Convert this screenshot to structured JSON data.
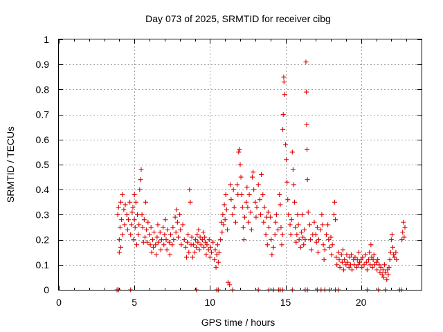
{
  "chart_data": {
    "type": "scatter",
    "title": "Day 073 of 2025, SRMTID for receiver cibg",
    "xlabel": "GPS time / hours",
    "ylabel": "SRMTID / TECUs",
    "xlim": [
      0,
      24
    ],
    "ylim": [
      0,
      1
    ],
    "grid": true,
    "marker": "+",
    "color": "#e00000",
    "x_ticks": [
      0,
      5,
      10,
      15,
      20
    ],
    "x_tick_labels": [
      "0",
      "5",
      "10",
      "15",
      "20"
    ],
    "y_ticks": [
      0,
      0.1,
      0.2,
      0.3,
      0.4,
      0.5,
      0.6,
      0.7,
      0.8,
      0.9,
      1
    ],
    "y_tick_labels": [
      "0",
      "0.1",
      "0.2",
      "0.3",
      "0.4",
      "0.5",
      "0.6",
      "0.7",
      "0.8",
      "0.9",
      "1"
    ],
    "series_description": "SRMTID values (TECU) versus GPS time (hours)",
    "points": [
      [
        3.9,
        0.3
      ],
      [
        3.95,
        0.33
      ],
      [
        4.0,
        0.2
      ],
      [
        4.0,
        0.15
      ],
      [
        4.05,
        0.25
      ],
      [
        4.1,
        0.35
      ],
      [
        4.1,
        0.17
      ],
      [
        4.15,
        0.28
      ],
      [
        4.2,
        0.38
      ],
      [
        4.2,
        0.22
      ],
      [
        4.3,
        0.32
      ],
      [
        4.35,
        0.26
      ],
      [
        4.4,
        0.34
      ],
      [
        4.5,
        0.3
      ],
      [
        4.55,
        0.24
      ],
      [
        4.6,
        0.28
      ],
      [
        4.7,
        0.35
      ],
      [
        4.75,
        0.22
      ],
      [
        4.8,
        0.26
      ],
      [
        4.85,
        0.31
      ],
      [
        4.9,
        0.33
      ],
      [
        4.95,
        0.2
      ],
      [
        5.0,
        0.38
      ],
      [
        5.0,
        0.28
      ],
      [
        5.05,
        0.25
      ],
      [
        5.1,
        0.35
      ],
      [
        5.15,
        0.18
      ],
      [
        5.2,
        0.3
      ],
      [
        5.25,
        0.22
      ],
      [
        5.3,
        0.26
      ],
      [
        5.35,
        0.4
      ],
      [
        5.4,
        0.44
      ],
      [
        5.45,
        0.48
      ],
      [
        5.5,
        0.3
      ],
      [
        5.55,
        0.25
      ],
      [
        5.6,
        0.19
      ],
      [
        5.65,
        0.28
      ],
      [
        5.7,
        0.21
      ],
      [
        5.75,
        0.35
      ],
      [
        5.8,
        0.24
      ],
      [
        5.85,
        0.19
      ],
      [
        5.9,
        0.27
      ],
      [
        6.0,
        0.22
      ],
      [
        6.05,
        0.18
      ],
      [
        6.1,
        0.25
      ],
      [
        6.15,
        0.15
      ],
      [
        6.2,
        0.2
      ],
      [
        6.25,
        0.17
      ],
      [
        6.3,
        0.23
      ],
      [
        6.4,
        0.18
      ],
      [
        6.45,
        0.14
      ],
      [
        6.5,
        0.21
      ],
      [
        6.55,
        0.26
      ],
      [
        6.6,
        0.19
      ],
      [
        6.7,
        0.23
      ],
      [
        6.75,
        0.16
      ],
      [
        6.8,
        0.2
      ],
      [
        6.9,
        0.25
      ],
      [
        6.95,
        0.18
      ],
      [
        7.0,
        0.22
      ],
      [
        7.05,
        0.28
      ],
      [
        7.1,
        0.2
      ],
      [
        7.15,
        0.16
      ],
      [
        7.2,
        0.24
      ],
      [
        7.3,
        0.19
      ],
      [
        7.35,
        0.14
      ],
      [
        7.4,
        0.22
      ],
      [
        7.5,
        0.18
      ],
      [
        7.55,
        0.25
      ],
      [
        7.6,
        0.2
      ],
      [
        7.7,
        0.29
      ],
      [
        7.75,
        0.23
      ],
      [
        7.8,
        0.32
      ],
      [
        7.85,
        0.27
      ],
      [
        7.9,
        0.21
      ],
      [
        8.0,
        0.3
      ],
      [
        8.05,
        0.24
      ],
      [
        8.1,
        0.18
      ],
      [
        8.2,
        0.26
      ],
      [
        8.3,
        0.2
      ],
      [
        8.4,
        0.17
      ],
      [
        8.45,
        0.13
      ],
      [
        8.5,
        0.19
      ],
      [
        8.55,
        0.22
      ],
      [
        8.6,
        0.15
      ],
      [
        8.65,
        0.4
      ],
      [
        8.7,
        0.35
      ],
      [
        8.75,
        0.18
      ],
      [
        8.8,
        0.21
      ],
      [
        8.85,
        0.13
      ],
      [
        8.9,
        0.18
      ],
      [
        9.0,
        0.15
      ],
      [
        9.05,
        0.2
      ],
      [
        9.1,
        0.17
      ],
      [
        9.15,
        0.22
      ],
      [
        9.2,
        0.19
      ],
      [
        9.25,
        0.24
      ],
      [
        9.3,
        0.16
      ],
      [
        9.35,
        0.21
      ],
      [
        9.4,
        0.18
      ],
      [
        9.5,
        0.2
      ],
      [
        9.55,
        0.23
      ],
      [
        9.6,
        0.17
      ],
      [
        9.65,
        0.21
      ],
      [
        9.7,
        0.19
      ],
      [
        9.75,
        0.14
      ],
      [
        9.8,
        0.18
      ],
      [
        9.9,
        0.16
      ],
      [
        9.95,
        0.2
      ],
      [
        10.0,
        0.13
      ],
      [
        10.05,
        0.17
      ],
      [
        10.1,
        0.15
      ],
      [
        10.2,
        0.19
      ],
      [
        10.3,
        0.12
      ],
      [
        10.35,
        0.16
      ],
      [
        10.4,
        0.09
      ],
      [
        10.45,
        0.14
      ],
      [
        10.5,
        0.18
      ],
      [
        10.55,
        0.11
      ],
      [
        10.6,
        0.15
      ],
      [
        10.7,
        0.2
      ],
      [
        10.75,
        0.27
      ],
      [
        10.8,
        0.23
      ],
      [
        10.85,
        0.3
      ],
      [
        10.9,
        0.26
      ],
      [
        10.95,
        0.34
      ],
      [
        11.0,
        0.28
      ],
      [
        11.05,
        0.38
      ],
      [
        11.1,
        0.32
      ],
      [
        11.15,
        0.24
      ],
      [
        11.2,
        0.03
      ],
      [
        11.3,
        0.02
      ],
      [
        11.35,
        0.42
      ],
      [
        11.4,
        0.36
      ],
      [
        11.5,
        0.3
      ],
      [
        11.55,
        0.4
      ],
      [
        11.6,
        0.33
      ],
      [
        11.7,
        0.27
      ],
      [
        11.8,
        0.42
      ],
      [
        11.85,
        0.38
      ],
      [
        11.9,
        0.55
      ],
      [
        11.95,
        0.56
      ],
      [
        12.0,
        0.5
      ],
      [
        12.05,
        0.45
      ],
      [
        12.1,
        0.38
      ],
      [
        12.15,
        0.33
      ],
      [
        12.2,
        0.25
      ],
      [
        12.25,
        0.2
      ],
      [
        12.3,
        0.29
      ],
      [
        12.4,
        0.35
      ],
      [
        12.45,
        0.41
      ],
      [
        12.5,
        0.33
      ],
      [
        12.55,
        0.27
      ],
      [
        12.6,
        0.38
      ],
      [
        12.7,
        0.31
      ],
      [
        12.75,
        0.24
      ],
      [
        12.8,
        0.45
      ],
      [
        12.85,
        0.47
      ],
      [
        12.9,
        0.4
      ],
      [
        13.0,
        0.35
      ],
      [
        13.05,
        0.29
      ],
      [
        13.1,
        0.33
      ],
      [
        13.2,
        0.42
      ],
      [
        13.3,
        0.36
      ],
      [
        13.35,
        0.3
      ],
      [
        13.4,
        0.46
      ],
      [
        13.5,
        0.38
      ],
      [
        13.55,
        0.27
      ],
      [
        13.6,
        0.33
      ],
      [
        13.7,
        0.22
      ],
      [
        13.75,
        0.29
      ],
      [
        13.8,
        0.18
      ],
      [
        13.85,
        0.31
      ],
      [
        13.9,
        0.25
      ],
      [
        14.0,
        0.29
      ],
      [
        14.05,
        0.2
      ],
      [
        14.1,
        0.14
      ],
      [
        14.2,
        0.17
      ],
      [
        14.3,
        0.22
      ],
      [
        14.35,
        0.27
      ],
      [
        14.4,
        0.3
      ],
      [
        14.5,
        0.24
      ],
      [
        14.6,
        0.38
      ],
      [
        14.65,
        0.34
      ],
      [
        14.7,
        0.25
      ],
      [
        14.75,
        0.18
      ],
      [
        14.8,
        0.22
      ],
      [
        14.82,
        0.64
      ],
      [
        14.85,
        0.7
      ],
      [
        14.88,
        0.85
      ],
      [
        14.9,
        0.83
      ],
      [
        14.95,
        0.78
      ],
      [
        15.0,
        0.58
      ],
      [
        15.05,
        0.52
      ],
      [
        15.1,
        0.43
      ],
      [
        15.15,
        0.36
      ],
      [
        15.2,
        0.3
      ],
      [
        15.3,
        0.26
      ],
      [
        15.35,
        0.22
      ],
      [
        15.4,
        0.28
      ],
      [
        15.45,
        0.55
      ],
      [
        15.5,
        0.48
      ],
      [
        15.55,
        0.42
      ],
      [
        15.6,
        0.35
      ],
      [
        15.65,
        0.25
      ],
      [
        15.7,
        0.19
      ],
      [
        15.75,
        0.22
      ],
      [
        15.8,
        0.3
      ],
      [
        15.85,
        0.26
      ],
      [
        15.9,
        0.2
      ],
      [
        16.0,
        0.17
      ],
      [
        16.05,
        0.23
      ],
      [
        16.1,
        0.3
      ],
      [
        16.15,
        0.21
      ],
      [
        16.2,
        0.18
      ],
      [
        16.25,
        0.24
      ],
      [
        16.3,
        0.2
      ],
      [
        16.35,
        0.91
      ],
      [
        16.38,
        0.79
      ],
      [
        16.4,
        0.66
      ],
      [
        16.42,
        0.56
      ],
      [
        16.45,
        0.44
      ],
      [
        16.5,
        0.31
      ],
      [
        16.6,
        0.26
      ],
      [
        16.65,
        0.2
      ],
      [
        16.7,
        0.16
      ],
      [
        16.8,
        0.22
      ],
      [
        16.9,
        0.27
      ],
      [
        17.0,
        0.22
      ],
      [
        17.05,
        0.19
      ],
      [
        17.1,
        0.25
      ],
      [
        17.15,
        0.15
      ],
      [
        17.2,
        0.2
      ],
      [
        17.3,
        0.24
      ],
      [
        17.4,
        0.3
      ],
      [
        17.45,
        0.26
      ],
      [
        17.5,
        0.18
      ],
      [
        17.55,
        0.12
      ],
      [
        17.6,
        0.16
      ],
      [
        17.7,
        0.22
      ],
      [
        17.8,
        0.26
      ],
      [
        17.85,
        0.2
      ],
      [
        17.9,
        0.17
      ],
      [
        18.0,
        0.21
      ],
      [
        18.05,
        0.14
      ],
      [
        18.1,
        0.18
      ],
      [
        18.2,
        0.3
      ],
      [
        18.25,
        0.35
      ],
      [
        18.3,
        0.28
      ],
      [
        18.35,
        0.13
      ],
      [
        18.4,
        0.1
      ],
      [
        18.5,
        0.15
      ],
      [
        18.55,
        0.12
      ],
      [
        18.6,
        0.09
      ],
      [
        18.7,
        0.14
      ],
      [
        18.75,
        0.11
      ],
      [
        18.8,
        0.16
      ],
      [
        18.85,
        0.08
      ],
      [
        18.9,
        0.12
      ],
      [
        19.0,
        0.1
      ],
      [
        19.05,
        0.14
      ],
      [
        19.1,
        0.11
      ],
      [
        19.2,
        0.09
      ],
      [
        19.25,
        0.13
      ],
      [
        19.3,
        0.1
      ],
      [
        19.35,
        0.14
      ],
      [
        19.4,
        0.08
      ],
      [
        19.5,
        0.12
      ],
      [
        19.55,
        0.1
      ],
      [
        19.6,
        0.13
      ],
      [
        19.7,
        0.09
      ],
      [
        19.75,
        0.12
      ],
      [
        19.8,
        0.1
      ],
      [
        19.85,
        0.15
      ],
      [
        19.9,
        0.11
      ],
      [
        20.0,
        0.12
      ],
      [
        20.05,
        0.09
      ],
      [
        20.1,
        0.13
      ],
      [
        20.2,
        0.1
      ],
      [
        20.3,
        0.14
      ],
      [
        20.35,
        0.11
      ],
      [
        20.4,
        0.08
      ],
      [
        20.5,
        0.12
      ],
      [
        20.55,
        0.15
      ],
      [
        20.6,
        0.1
      ],
      [
        20.65,
        0.18
      ],
      [
        20.7,
        0.13
      ],
      [
        20.75,
        0.09
      ],
      [
        20.8,
        0.12
      ],
      [
        20.85,
        0.14
      ],
      [
        20.9,
        0.1
      ],
      [
        21.0,
        0.11
      ],
      [
        21.05,
        0.08
      ],
      [
        21.1,
        0.12
      ],
      [
        21.2,
        0.1
      ],
      [
        21.25,
        0.07
      ],
      [
        21.3,
        0.09
      ],
      [
        21.4,
        0.06
      ],
      [
        21.45,
        0.08
      ],
      [
        21.5,
        0.05
      ],
      [
        21.55,
        0.1
      ],
      [
        21.6,
        0.07
      ],
      [
        21.7,
        0.04
      ],
      [
        21.75,
        0.08
      ],
      [
        21.8,
        0.06
      ],
      [
        21.85,
        0.09
      ],
      [
        21.9,
        0.12
      ],
      [
        21.95,
        0.15
      ],
      [
        22.0,
        0.2
      ],
      [
        22.05,
        0.22
      ],
      [
        22.1,
        0.17
      ],
      [
        22.15,
        0.14
      ],
      [
        22.2,
        0.13
      ],
      [
        22.3,
        0.15
      ],
      [
        22.35,
        0.12
      ],
      [
        22.7,
        0.2
      ],
      [
        22.75,
        0.23
      ],
      [
        22.8,
        0.27
      ],
      [
        22.85,
        0.21
      ],
      [
        22.9,
        0.25
      ],
      [
        3.85,
        0.0
      ],
      [
        3.95,
        0.0
      ],
      [
        4.75,
        0.0
      ],
      [
        9.1,
        0.0
      ],
      [
        10.45,
        0.0
      ],
      [
        10.55,
        0.0
      ],
      [
        11.5,
        0.0
      ],
      [
        13.2,
        0.0
      ],
      [
        13.9,
        0.0
      ],
      [
        14.2,
        0.0
      ],
      [
        14.55,
        0.0
      ],
      [
        14.65,
        0.0
      ],
      [
        14.8,
        0.0
      ],
      [
        15.45,
        0.0
      ],
      [
        16.3,
        0.0
      ],
      [
        16.45,
        0.0
      ],
      [
        17.1,
        0.0
      ],
      [
        17.35,
        0.0
      ],
      [
        17.6,
        0.0
      ],
      [
        17.9,
        0.0
      ],
      [
        18.3,
        0.0
      ],
      [
        18.5,
        0.0
      ],
      [
        20.4,
        0.0
      ],
      [
        21.15,
        0.0
      ],
      [
        21.6,
        0.0
      ],
      [
        22.55,
        0.0
      ],
      [
        22.65,
        0.0
      ]
    ]
  }
}
